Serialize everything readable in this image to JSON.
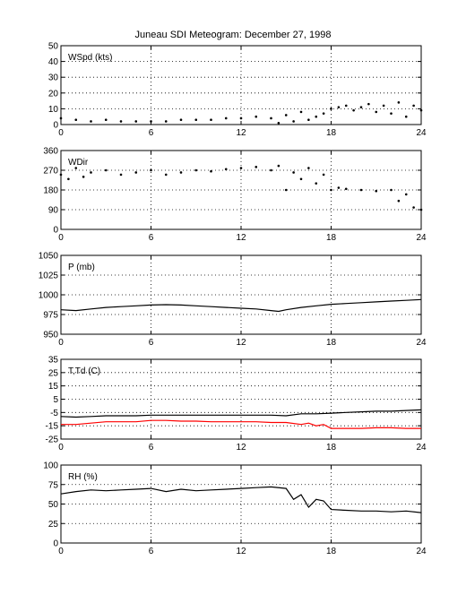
{
  "title": "Juneau SDI Meteogram:   December 27, 1998",
  "colors": {
    "axis": "#000000",
    "grid": "#000000",
    "temp": "#000000",
    "dewpoint": "#ff0000",
    "background": "#ffffff"
  },
  "chart_data": [
    {
      "type": "scatter",
      "label": "WSpd (kts)",
      "xlim": [
        0,
        24
      ],
      "ylim": [
        0,
        50
      ],
      "xticks": [
        0,
        6,
        12,
        18,
        24
      ],
      "yticks": [
        0,
        10,
        20,
        30,
        40,
        50
      ],
      "grid": true,
      "series": [
        {
          "x": [
            0,
            1,
            2,
            3,
            4,
            5,
            6,
            7,
            8,
            9,
            10,
            11,
            12,
            13,
            14,
            14.5,
            15,
            15.5,
            16,
            16.5,
            17,
            17.5,
            18,
            18.5,
            19,
            19.5,
            20,
            20.5,
            21,
            21.5,
            22,
            22.5,
            23,
            23.5,
            24
          ],
          "y": [
            4,
            3,
            2,
            3,
            2,
            2,
            2,
            2,
            3,
            3,
            3,
            4,
            4,
            5,
            4,
            1,
            6,
            2,
            8,
            3,
            5,
            7,
            10,
            11,
            12,
            9,
            11,
            13,
            8,
            12,
            7,
            14,
            5,
            12,
            9
          ]
        }
      ]
    },
    {
      "type": "scatter",
      "label": "WDir",
      "xlim": [
        0,
        24
      ],
      "ylim": [
        0,
        360
      ],
      "xticks": [
        0,
        6,
        12,
        18,
        24
      ],
      "yticks": [
        0,
        90,
        180,
        270,
        360
      ],
      "grid": true,
      "series": [
        {
          "x": [
            0,
            0.5,
            1,
            1.5,
            2,
            3,
            4,
            5,
            6,
            7,
            8,
            9,
            10,
            11,
            12,
            13,
            14,
            14.5,
            15,
            15.5,
            16,
            16.5,
            17,
            17.5,
            18,
            18.5,
            19,
            20,
            21,
            22,
            22.5,
            23,
            23.5,
            24
          ],
          "y": [
            250,
            230,
            280,
            240,
            260,
            270,
            250,
            260,
            270,
            250,
            260,
            270,
            265,
            275,
            280,
            285,
            270,
            290,
            180,
            260,
            230,
            280,
            210,
            250,
            180,
            190,
            185,
            180,
            175,
            180,
            130,
            160,
            100,
            90
          ]
        }
      ]
    },
    {
      "type": "line",
      "label": "P (mb)",
      "xlim": [
        0,
        24
      ],
      "ylim": [
        950,
        1050
      ],
      "xticks": [
        0,
        6,
        12,
        18,
        24
      ],
      "yticks": [
        950,
        975,
        1000,
        1025,
        1050
      ],
      "grid": true,
      "series": [
        {
          "x": [
            0,
            1,
            2,
            3,
            4,
            5,
            6,
            7,
            8,
            9,
            10,
            11,
            12,
            13,
            14,
            14.5,
            15,
            16,
            17,
            18,
            19,
            20,
            21,
            22,
            23,
            24
          ],
          "y": [
            981,
            980,
            982,
            984,
            985,
            986,
            987,
            987.5,
            987,
            986,
            985,
            984,
            983,
            982,
            980,
            979,
            981,
            984,
            986,
            988,
            989,
            990,
            991,
            992,
            993,
            994
          ]
        }
      ]
    },
    {
      "type": "line",
      "label": "T,Td (C)",
      "xlim": [
        0,
        24
      ],
      "ylim": [
        -25,
        35
      ],
      "xticks": [
        0,
        6,
        12,
        18,
        24
      ],
      "yticks": [
        -25,
        -15,
        -5,
        5,
        15,
        25,
        35
      ],
      "grid": true,
      "series": [
        {
          "x": [
            0,
            1,
            2,
            3,
            4,
            5,
            6,
            7,
            8,
            9,
            10,
            11,
            12,
            13,
            14,
            15,
            16,
            17,
            18,
            19,
            20,
            21,
            22,
            23,
            24
          ],
          "y": [
            -8,
            -8.5,
            -8,
            -7.5,
            -7.5,
            -7.5,
            -7,
            -7,
            -7,
            -7,
            -7,
            -7,
            -7,
            -7,
            -7,
            -7.5,
            -6,
            -6,
            -5.5,
            -5,
            -4.5,
            -4,
            -4,
            -3.5,
            -3
          ]
        },
        {
          "x": [
            0,
            1,
            2,
            3,
            4,
            5,
            6,
            7,
            8,
            9,
            10,
            11,
            12,
            13,
            14,
            15,
            16,
            16.5,
            17,
            17.5,
            18,
            19,
            20,
            21,
            22,
            23,
            24
          ],
          "y": [
            -14,
            -14,
            -13,
            -12,
            -12,
            -12,
            -11,
            -11,
            -11.5,
            -11.5,
            -12,
            -12,
            -12,
            -12,
            -12.5,
            -12.5,
            -14,
            -13,
            -15,
            -14,
            -17,
            -17,
            -17,
            -16.5,
            -16.5,
            -17,
            -17
          ]
        }
      ]
    },
    {
      "type": "line",
      "label": "RH (%)",
      "xlim": [
        0,
        24
      ],
      "ylim": [
        0,
        100
      ],
      "xticks": [
        0,
        6,
        12,
        18,
        24
      ],
      "yticks": [
        0,
        25,
        50,
        75,
        100
      ],
      "grid": true,
      "series": [
        {
          "x": [
            0,
            1,
            2,
            3,
            4,
            5,
            6,
            7,
            8,
            9,
            10,
            11,
            12,
            13,
            14,
            15,
            15.5,
            16,
            16.5,
            17,
            17.5,
            18,
            19,
            20,
            21,
            22,
            23,
            24
          ],
          "y": [
            63,
            66,
            68,
            67,
            68,
            69,
            70,
            66,
            69,
            67,
            68,
            69,
            70,
            71,
            72,
            70,
            56,
            62,
            46,
            56,
            54,
            43,
            42,
            41,
            41,
            40,
            41,
            39
          ]
        }
      ]
    }
  ]
}
